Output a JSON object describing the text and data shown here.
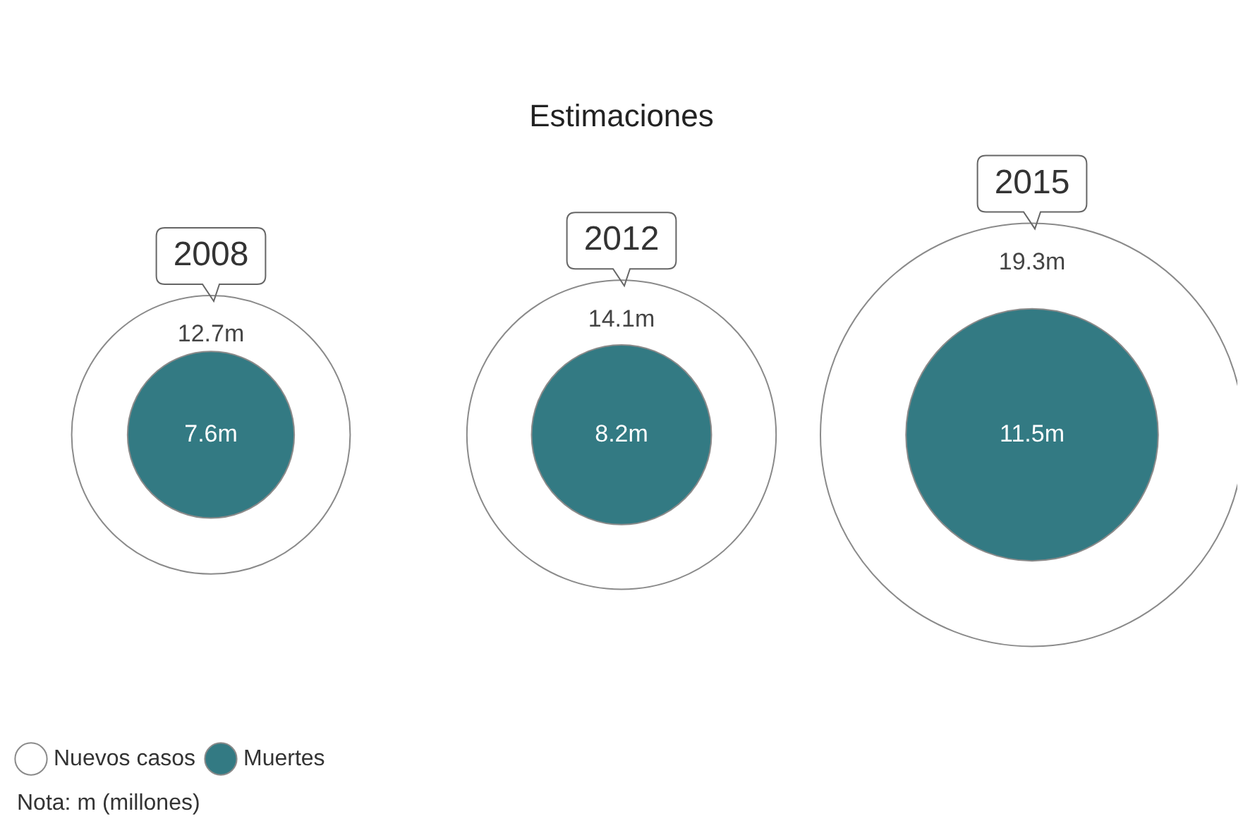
{
  "chart_data": {
    "type": "other",
    "title": "Estimaciones",
    "categories": [
      "2008",
      "2012",
      "2015"
    ],
    "series": [
      {
        "name": "Nuevos casos",
        "color": "#ffffff",
        "values": [
          12.7,
          14.1,
          19.3
        ],
        "value_labels": [
          "12.7m",
          "14.1m",
          "19.3m"
        ]
      },
      {
        "name": "Muertes",
        "color": "#337a83",
        "values": [
          7.6,
          8.2,
          11.5
        ],
        "value_labels": [
          "7.6m",
          "8.2m",
          "11.5m"
        ]
      }
    ],
    "legend": "bottom left",
    "annotations": [
      "Nota: m (millones)"
    ]
  }
}
